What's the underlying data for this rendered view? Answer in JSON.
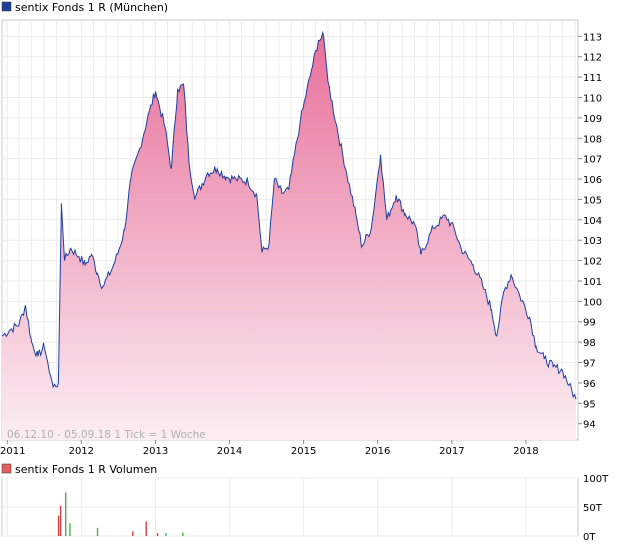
{
  "chart_data": [
    {
      "type": "area",
      "series_name": "sentix Fonds 1 R (München)",
      "legend_color": "#1f3f9e",
      "line_color": "#1f3f9e",
      "fill_top_color": "#e8709a",
      "fill_bottom_color": "#fbeef3",
      "x_start": "2010-12-06",
      "x_end": "2018-09-05",
      "x_ticks": [
        "2011",
        "2012",
        "2013",
        "2014",
        "2015",
        "2016",
        "2017",
        "2018"
      ],
      "y_ticks": [
        94,
        95,
        96,
        97,
        98,
        99,
        100,
        101,
        102,
        103,
        104,
        105,
        106,
        107,
        108,
        109,
        110,
        111,
        112,
        113
      ],
      "ylim": [
        93.2,
        113.8
      ],
      "grid": true,
      "annotation": "06.12.10 - 05.09.18   1 Tick = 1 Woche",
      "points": [
        [
          "2010-12-06",
          98.3
        ],
        [
          "2011-01-15",
          98.6
        ],
        [
          "2011-03-01",
          98.9
        ],
        [
          "2011-04-01",
          99.8
        ],
        [
          "2011-05-01",
          98.0
        ],
        [
          "2011-06-01",
          97.3
        ],
        [
          "2011-07-01",
          97.8
        ],
        [
          "2011-07-20",
          97.0
        ],
        [
          "2011-08-15",
          95.8
        ],
        [
          "2011-09-10",
          96.0
        ],
        [
          "2011-09-25",
          104.8
        ],
        [
          "2011-10-10",
          102.0
        ],
        [
          "2011-11-10",
          102.6
        ],
        [
          "2011-12-20",
          102.2
        ],
        [
          "2012-01-20",
          101.8
        ],
        [
          "2012-02-20",
          102.3
        ],
        [
          "2012-03-20",
          101.4
        ],
        [
          "2012-04-15",
          100.7
        ],
        [
          "2012-06-01",
          101.6
        ],
        [
          "2012-07-01",
          102.4
        ],
        [
          "2012-08-01",
          103.5
        ],
        [
          "2012-09-01",
          106.0
        ],
        [
          "2012-10-15",
          107.5
        ],
        [
          "2012-12-01",
          109.3
        ],
        [
          "2013-01-01",
          110.3
        ],
        [
          "2013-02-15",
          108.6
        ],
        [
          "2013-03-20",
          106.5
        ],
        [
          "2013-04-20",
          110.4
        ],
        [
          "2013-05-20",
          110.6
        ],
        [
          "2013-06-15",
          106.8
        ],
        [
          "2013-07-15",
          105.1
        ],
        [
          "2013-09-15",
          106.3
        ],
        [
          "2013-11-01",
          106.5
        ],
        [
          "2013-12-15",
          106.1
        ],
        [
          "2014-02-01",
          106.0
        ],
        [
          "2014-04-01",
          105.9
        ],
        [
          "2014-05-15",
          105.2
        ],
        [
          "2014-06-10",
          102.4
        ],
        [
          "2014-07-15",
          102.8
        ],
        [
          "2014-08-10",
          106.0
        ],
        [
          "2014-09-15",
          105.3
        ],
        [
          "2014-10-20",
          105.5
        ],
        [
          "2014-12-15",
          108.8
        ],
        [
          "2015-02-01",
          111.0
        ],
        [
          "2015-03-15",
          112.8
        ],
        [
          "2015-04-10",
          113.0
        ],
        [
          "2015-05-01",
          110.8
        ],
        [
          "2015-06-15",
          108.5
        ],
        [
          "2015-08-01",
          106.3
        ],
        [
          "2015-09-15",
          104.3
        ],
        [
          "2015-10-15",
          102.7
        ],
        [
          "2015-12-01",
          103.6
        ],
        [
          "2016-01-15",
          107.2
        ],
        [
          "2016-02-15",
          104.0
        ],
        [
          "2016-04-01",
          105.2
        ],
        [
          "2016-05-15",
          104.3
        ],
        [
          "2016-07-01",
          103.8
        ],
        [
          "2016-08-01",
          102.3
        ],
        [
          "2016-10-01",
          103.6
        ],
        [
          "2016-12-01",
          104.2
        ],
        [
          "2017-01-15",
          103.5
        ],
        [
          "2017-02-15",
          102.6
        ],
        [
          "2017-04-15",
          101.8
        ],
        [
          "2017-06-01",
          100.8
        ],
        [
          "2017-07-15",
          99.6
        ],
        [
          "2017-08-10",
          98.3
        ],
        [
          "2017-09-15",
          100.5
        ],
        [
          "2017-10-20",
          101.3
        ],
        [
          "2017-12-01",
          100.3
        ],
        [
          "2018-01-20",
          99.2
        ],
        [
          "2018-02-20",
          97.8
        ],
        [
          "2018-04-01",
          97.2
        ],
        [
          "2018-05-15",
          96.8
        ],
        [
          "2018-07-01",
          96.6
        ],
        [
          "2018-08-01",
          95.9
        ],
        [
          "2018-09-05",
          95.2
        ]
      ]
    },
    {
      "type": "bar",
      "series_name": "sentix Fonds 1 R Volumen",
      "legend_color": "#e06060",
      "y_ticks": [
        "0T",
        "50T",
        "100T"
      ],
      "ylim": [
        0,
        100
      ],
      "grid": true,
      "bars": [
        {
          "x": "2011-09-10",
          "value": 35,
          "color": "#d04040"
        },
        {
          "x": "2011-09-20",
          "value": 52,
          "color": "#d04040"
        },
        {
          "x": "2011-10-15",
          "value": 75,
          "color": "#4caf50"
        },
        {
          "x": "2011-11-05",
          "value": 22,
          "color": "#4caf50"
        },
        {
          "x": "2012-03-20",
          "value": 14,
          "color": "#4caf50"
        },
        {
          "x": "2012-09-10",
          "value": 8,
          "color": "#d04040"
        },
        {
          "x": "2012-11-15",
          "value": 25,
          "color": "#d04040"
        },
        {
          "x": "2013-01-10",
          "value": 5,
          "color": "#d04040"
        },
        {
          "x": "2013-02-20",
          "value": 5,
          "color": "#4caf50"
        },
        {
          "x": "2013-05-15",
          "value": 6,
          "color": "#4caf50"
        }
      ]
    }
  ]
}
